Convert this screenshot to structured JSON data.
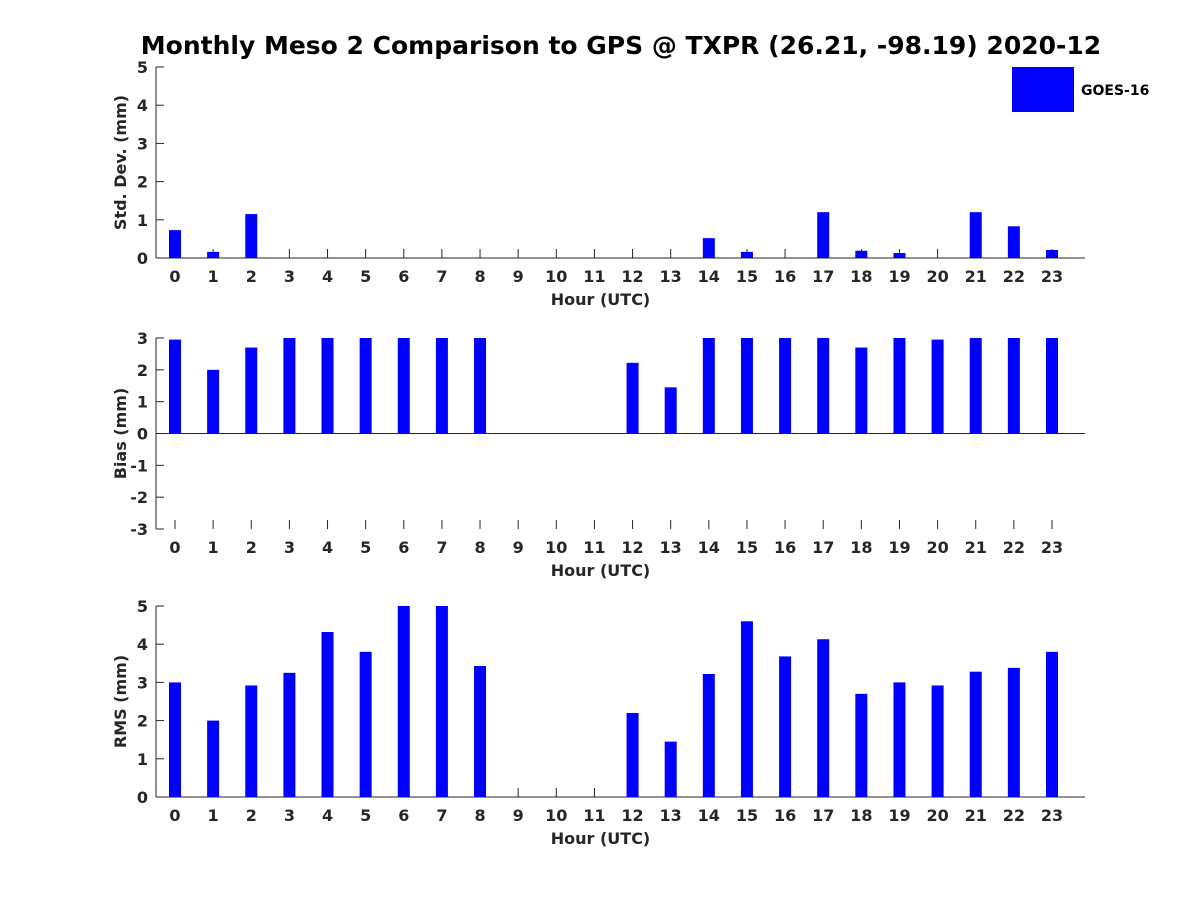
{
  "title": "Monthly Meso 2 Comparison to GPS @ TXPR (26.21, -98.19) 2020-12",
  "legend": {
    "label": "GOES-16",
    "color": "#0000ff"
  },
  "colors": {
    "bar": "#0000ff",
    "axis": "#262626"
  },
  "chart_data": [
    {
      "type": "bar",
      "ylabel": "Std. Dev. (mm)",
      "xlabel": "Hour (UTC)",
      "ylim": [
        0,
        5
      ],
      "yticks": [
        0,
        1,
        2,
        3,
        4,
        5
      ],
      "categories": [
        0,
        1,
        2,
        3,
        4,
        5,
        6,
        7,
        8,
        9,
        10,
        11,
        12,
        13,
        14,
        15,
        16,
        17,
        18,
        19,
        20,
        21,
        22,
        23
      ],
      "series": [
        {
          "name": "GOES-16",
          "values": [
            0.73,
            0.16,
            1.15,
            0,
            0,
            0,
            0,
            0,
            0,
            0,
            0,
            0,
            0,
            0,
            0.52,
            0.16,
            0,
            1.2,
            0.19,
            0.13,
            0,
            1.2,
            0.83,
            0.21
          ]
        }
      ]
    },
    {
      "type": "bar",
      "ylabel": "Bias (mm)",
      "xlabel": "Hour (UTC)",
      "ylim": [
        -3,
        3
      ],
      "yticks": [
        -3,
        -2,
        -1,
        0,
        1,
        2,
        3
      ],
      "categories": [
        0,
        1,
        2,
        3,
        4,
        5,
        6,
        7,
        8,
        9,
        10,
        11,
        12,
        13,
        14,
        15,
        16,
        17,
        18,
        19,
        20,
        21,
        22,
        23
      ],
      "series": [
        {
          "name": "GOES-16",
          "values": [
            2.95,
            2.0,
            2.7,
            3.0,
            3.0,
            3.0,
            3.0,
            3.0,
            3.0,
            0,
            0,
            0,
            2.22,
            1.45,
            3.0,
            3.0,
            3.0,
            3.0,
            2.7,
            3.0,
            2.95,
            3.0,
            3.0,
            3.0
          ]
        }
      ]
    },
    {
      "type": "bar",
      "ylabel": "RMS (mm)",
      "xlabel": "Hour (UTC)",
      "ylim": [
        0,
        5
      ],
      "yticks": [
        0,
        1,
        2,
        3,
        4,
        5
      ],
      "categories": [
        0,
        1,
        2,
        3,
        4,
        5,
        6,
        7,
        8,
        9,
        10,
        11,
        12,
        13,
        14,
        15,
        16,
        17,
        18,
        19,
        20,
        21,
        22,
        23
      ],
      "series": [
        {
          "name": "GOES-16",
          "values": [
            3.0,
            2.0,
            2.92,
            3.25,
            4.32,
            3.8,
            5.0,
            5.0,
            3.43,
            0,
            0,
            0,
            2.2,
            1.45,
            3.22,
            4.6,
            3.68,
            4.13,
            2.7,
            3.0,
            2.92,
            3.28,
            3.38,
            3.8
          ]
        }
      ]
    }
  ]
}
